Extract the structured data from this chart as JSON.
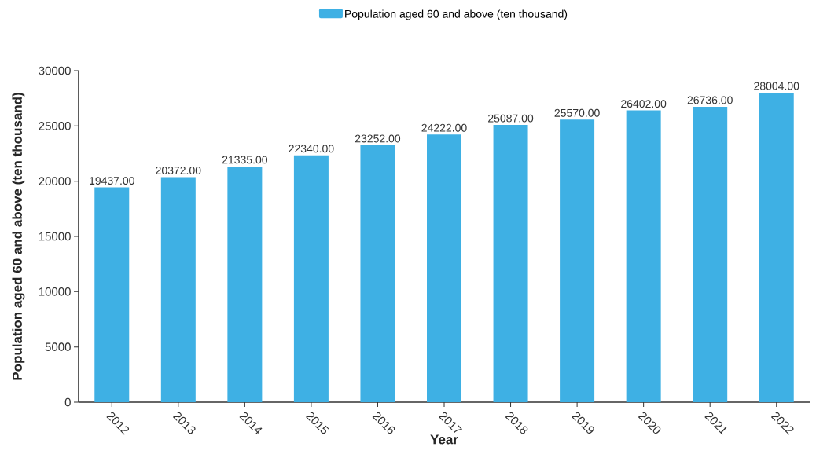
{
  "chart_data": {
    "type": "bar",
    "xlabel": "Year",
    "ylabel": "Population aged 60 and above (ten thousand)",
    "categories": [
      "2012",
      "2013",
      "2014",
      "2015",
      "2016",
      "2017",
      "2018",
      "2019",
      "2020",
      "2021",
      "2022"
    ],
    "series": [
      {
        "name": "Population aged 60 and above (ten thousand)",
        "color": "#3eb0e4",
        "values": [
          19437,
          20372,
          21335,
          22340,
          23252,
          24222,
          25087,
          25570,
          26402,
          26736,
          28004
        ]
      }
    ],
    "value_labels": [
      "19437.00",
      "20372.00",
      "21335.00",
      "22340.00",
      "23252.00",
      "24222.00",
      "25087.00",
      "25570.00",
      "26402.00",
      "26736.00",
      "28004.00"
    ],
    "ylim": [
      0,
      30000
    ],
    "yticks": [
      0,
      5000,
      10000,
      15000,
      20000,
      25000,
      30000
    ],
    "grid": false,
    "legend": "top"
  }
}
